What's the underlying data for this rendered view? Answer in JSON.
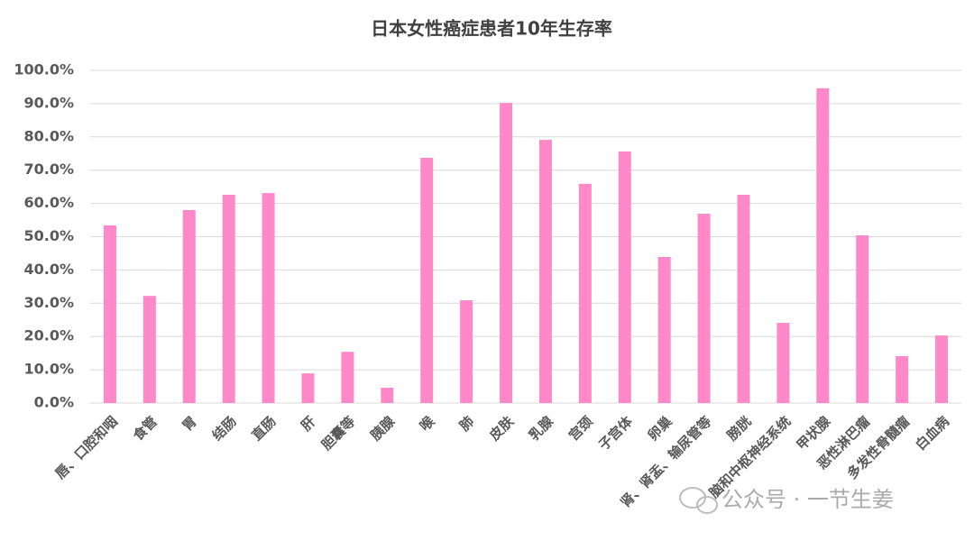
{
  "chart_data": {
    "type": "bar",
    "title": "日本女性癌症患者10年生存率",
    "categories": [
      "唇、口腔和咽",
      "食管",
      "胃",
      "结肠",
      "直肠",
      "肝",
      "胆囊等",
      "胰腺",
      "喉",
      "肺",
      "皮肤",
      "乳腺",
      "宫颈",
      "子宫体",
      "卵巢",
      "肾、肾盂、输尿管等",
      "膀胱",
      "脑和中枢神经系统",
      "甲状腺",
      "恶性淋巴瘤",
      "多发性骨髓瘤",
      "白血病"
    ],
    "values": [
      53.4,
      32.2,
      58.0,
      62.6,
      63.1,
      8.9,
      15.4,
      4.6,
      73.7,
      30.9,
      90.2,
      79.1,
      65.9,
      75.6,
      43.9,
      56.9,
      62.6,
      24.1,
      94.6,
      50.4,
      14.1,
      20.3
    ],
    "color": "#ff88c8",
    "ylim": [
      0,
      100
    ],
    "yticks": [
      {
        "value": 0,
        "label": "0.0%"
      },
      {
        "value": 10,
        "label": "10.0%"
      },
      {
        "value": 20,
        "label": "20.0%"
      },
      {
        "value": 30,
        "label": "30.0%"
      },
      {
        "value": 40,
        "label": "40.0%"
      },
      {
        "value": 50,
        "label": "50.0%"
      },
      {
        "value": 60,
        "label": "60.0%"
      },
      {
        "value": 70,
        "label": "70.0%"
      },
      {
        "value": 80,
        "label": "80.0%"
      },
      {
        "value": 90,
        "label": "90.0%"
      },
      {
        "value": 100,
        "label": "100.0%"
      }
    ],
    "grid": true,
    "watermark": "公众号 · 一节生姜"
  }
}
